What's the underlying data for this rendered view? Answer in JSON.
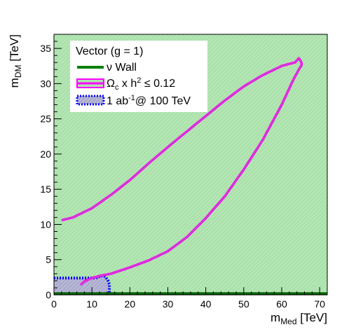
{
  "chart_data": {
    "type": "line",
    "title": "",
    "xlabel": "m",
    "xlabel_sub": "Med",
    "xlabel_unit": " [TeV]",
    "ylabel": "m",
    "ylabel_sub": "DM",
    "ylabel_unit": " [TeV]",
    "xlim": [
      0,
      72
    ],
    "ylim": [
      0,
      37
    ],
    "x_ticks": [
      "0",
      "10",
      "20",
      "30",
      "40",
      "50",
      "60",
      "70"
    ],
    "y_ticks": [
      "0",
      "5",
      "10",
      "15",
      "20",
      "25",
      "30",
      "35"
    ],
    "grid": false,
    "legend": {
      "placement": "top-left",
      "header": "Vector (g = 1)",
      "entries": [
        {
          "name": "ν Wall",
          "style": "thick-line",
          "color": "#008000"
        },
        {
          "name_parts": [
            "Ω",
            "c",
            " x h",
            "2",
            " ≤ 0.12"
          ],
          "style": "hatched-box-magenta",
          "color": "#ff00ff"
        },
        {
          "name_parts": [
            "1 ab",
            "-1",
            "@ 100 TeV"
          ],
          "style": "dotted-box-blue",
          "color": "#0000ff"
        }
      ]
    },
    "colors": {
      "background_fill": "#b4e6b4",
      "hatch": "#7fc77f",
      "relic_contour": "#ff00ff",
      "relic_inner": "#a070a0",
      "nu_wall": "#006400",
      "reach_border": "#0000ff",
      "reach_fill": "#a8a8c8"
    },
    "series": [
      {
        "name": "ν Wall",
        "x": [
          0,
          72
        ],
        "y": [
          0.08,
          0.08
        ]
      },
      {
        "name": "Ωc x h2 ≤ 0.12",
        "x": [
          2,
          5,
          10,
          15,
          20,
          25,
          30,
          35,
          40,
          45,
          50,
          55,
          60,
          62,
          63.5,
          64.5,
          65,
          65.3,
          65.1,
          64.5,
          63,
          60,
          55,
          50,
          45,
          40,
          35,
          30,
          25,
          20,
          15,
          12,
          10,
          8,
          7
        ],
        "y": [
          10.6,
          11.0,
          12.3,
          14.2,
          16.3,
          18.7,
          21.0,
          23.2,
          25.4,
          27.6,
          29.6,
          31.2,
          32.5,
          32.8,
          33.0,
          33.6,
          33.2,
          32.8,
          32.5,
          32.0,
          30.5,
          27.0,
          22.0,
          17.8,
          14.0,
          10.9,
          8.2,
          6.2,
          4.9,
          3.9,
          3.0,
          2.7,
          2.4,
          1.9,
          1.4
        ]
      },
      {
        "name": "1 ab-1 @ 100 TeV",
        "x": [
          0,
          11,
          12.5,
          13.5,
          14.2,
          14.6,
          14.6,
          0
        ],
        "y": [
          2.4,
          2.4,
          2.7,
          2.6,
          2.1,
          1.5,
          0,
          0
        ]
      }
    ]
  }
}
